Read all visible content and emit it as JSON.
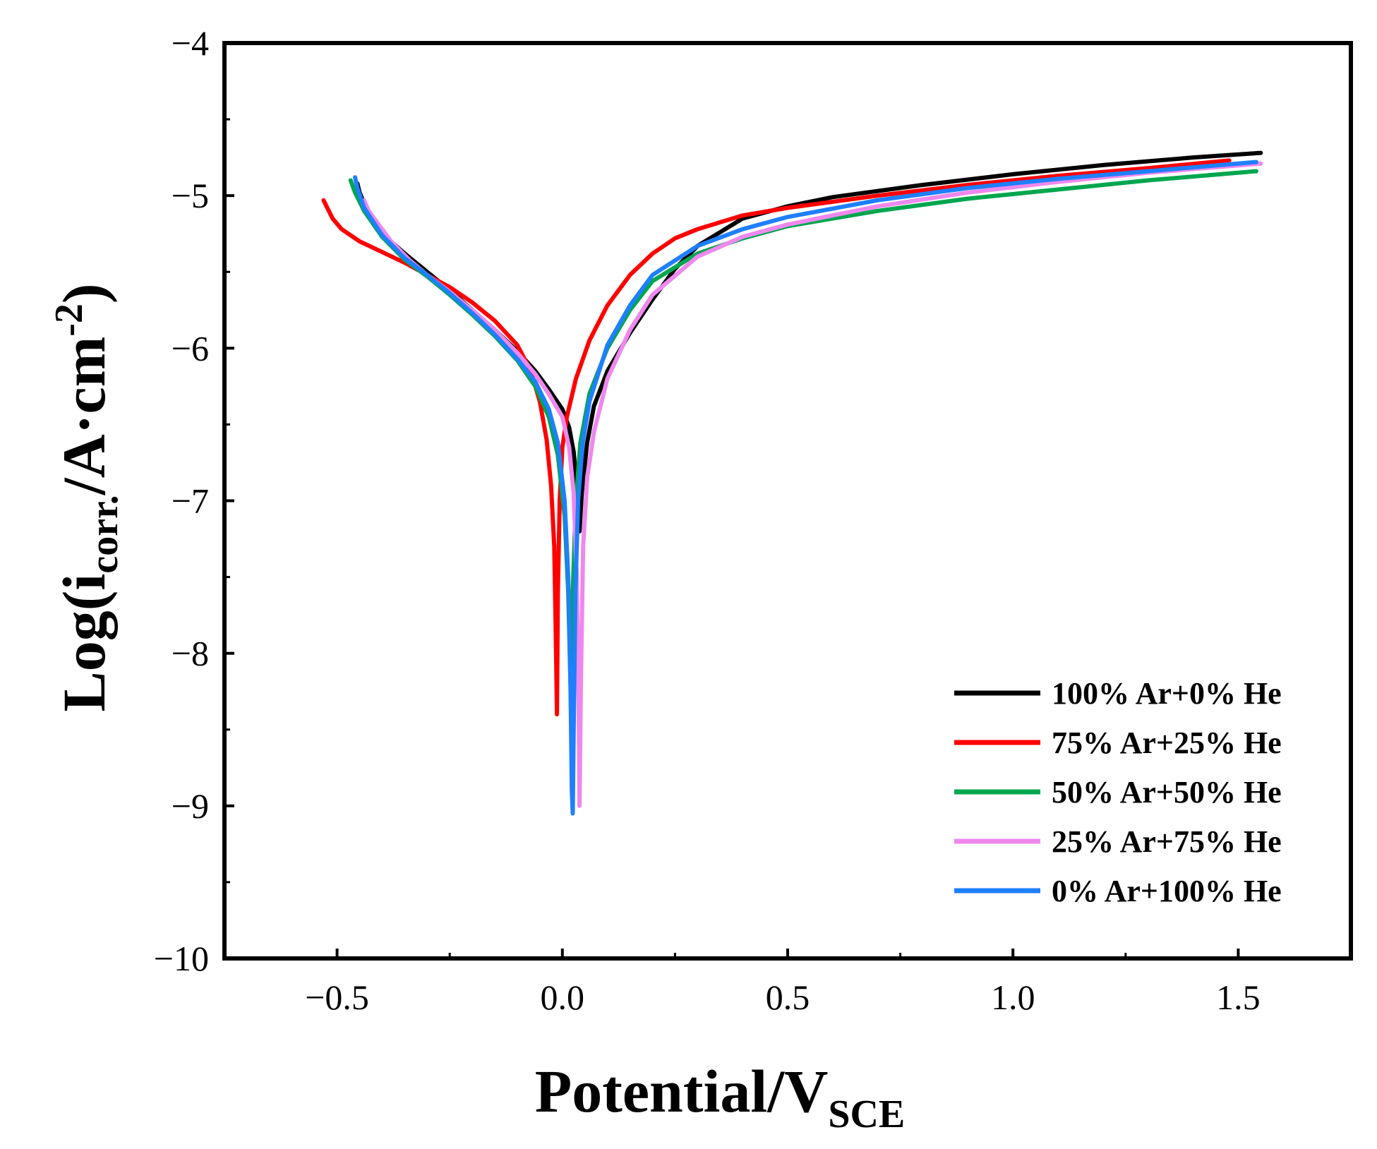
{
  "chart_data": {
    "type": "line",
    "title": "",
    "xlabel": {
      "main": "Potential/V",
      "sub": "SCE"
    },
    "ylabel": {
      "main": "Log(i",
      "sub": "corr.",
      "unit": "/A·cm",
      "sup": "-2",
      "close": ")"
    },
    "xlim": [
      -0.75,
      1.75
    ],
    "ylim": [
      -10,
      -4
    ],
    "xticks": [
      -0.5,
      0.0,
      0.5,
      1.0,
      1.5
    ],
    "xtick_labels": [
      "−0.5",
      "0.0",
      "0.5",
      "1.0",
      "1.5"
    ],
    "yticks": [
      -10,
      -9,
      -8,
      -7,
      -6,
      -5,
      -4
    ],
    "ytick_labels": [
      "−10",
      "−9",
      "−8",
      "−7",
      "−6",
      "−5",
      "−4"
    ],
    "grid": false,
    "legend_position": "bottom-right",
    "series": [
      {
        "name": "100% Ar+0% He",
        "color": "#000000",
        "x": [
          -0.455,
          -0.45,
          -0.43,
          -0.4,
          -0.35,
          -0.3,
          -0.25,
          -0.2,
          -0.15,
          -0.1,
          -0.06,
          -0.03,
          0.0,
          0.015,
          0.025,
          0.032,
          0.038,
          0.043,
          0.055,
          0.07,
          0.1,
          0.15,
          0.2,
          0.25,
          0.3,
          0.4,
          0.5,
          0.6,
          0.8,
          1.0,
          1.2,
          1.4,
          1.55
        ],
        "y": [
          -4.92,
          -4.98,
          -5.12,
          -5.25,
          -5.38,
          -5.5,
          -5.62,
          -5.75,
          -5.88,
          -6.02,
          -6.15,
          -6.27,
          -6.4,
          -6.52,
          -6.68,
          -6.9,
          -7.2,
          -6.95,
          -6.62,
          -6.38,
          -6.15,
          -5.9,
          -5.68,
          -5.48,
          -5.33,
          -5.15,
          -5.07,
          -5.01,
          -4.93,
          -4.86,
          -4.8,
          -4.75,
          -4.72
        ]
      },
      {
        "name": "75% Ar+25% He",
        "color": "#ff0000",
        "x": [
          -0.53,
          -0.51,
          -0.49,
          -0.45,
          -0.4,
          -0.35,
          -0.3,
          -0.25,
          -0.2,
          -0.15,
          -0.1,
          -0.07,
          -0.05,
          -0.035,
          -0.025,
          -0.018,
          -0.015,
          -0.013,
          -0.012,
          -0.01,
          -0.006,
          0.0,
          0.01,
          0.03,
          0.06,
          0.1,
          0.15,
          0.2,
          0.25,
          0.3,
          0.4,
          0.5,
          0.7,
          0.9,
          1.1,
          1.3,
          1.48
        ],
        "y": [
          -5.03,
          -5.15,
          -5.22,
          -5.3,
          -5.37,
          -5.44,
          -5.52,
          -5.6,
          -5.7,
          -5.82,
          -5.98,
          -6.15,
          -6.35,
          -6.6,
          -6.9,
          -7.3,
          -7.8,
          -8.2,
          -8.4,
          -7.6,
          -7.0,
          -6.65,
          -6.45,
          -6.2,
          -5.95,
          -5.72,
          -5.52,
          -5.38,
          -5.28,
          -5.22,
          -5.13,
          -5.08,
          -5.0,
          -4.93,
          -4.87,
          -4.82,
          -4.77
        ]
      },
      {
        "name": "50% Ar+50% He",
        "color": "#00a64f",
        "x": [
          -0.47,
          -0.46,
          -0.44,
          -0.4,
          -0.35,
          -0.3,
          -0.25,
          -0.2,
          -0.15,
          -0.1,
          -0.06,
          -0.03,
          -0.01,
          0.005,
          0.013,
          0.018,
          0.02,
          0.023,
          0.03,
          0.04,
          0.06,
          0.1,
          0.15,
          0.2,
          0.3,
          0.4,
          0.5,
          0.7,
          0.9,
          1.1,
          1.3,
          1.54
        ],
        "y": [
          -4.9,
          -4.98,
          -5.1,
          -5.27,
          -5.42,
          -5.53,
          -5.65,
          -5.78,
          -5.92,
          -6.08,
          -6.25,
          -6.45,
          -6.7,
          -7.1,
          -7.6,
          -8.2,
          -8.5,
          -7.6,
          -7.0,
          -6.62,
          -6.3,
          -6.0,
          -5.75,
          -5.56,
          -5.38,
          -5.28,
          -5.2,
          -5.1,
          -5.02,
          -4.96,
          -4.9,
          -4.84
        ]
      },
      {
        "name": "25% Ar+75% He",
        "color": "#ee88ee",
        "x": [
          -0.44,
          -0.43,
          -0.41,
          -0.38,
          -0.34,
          -0.3,
          -0.25,
          -0.2,
          -0.15,
          -0.1,
          -0.06,
          -0.03,
          0.0,
          0.015,
          0.025,
          0.032,
          0.036,
          0.038,
          0.041,
          0.046,
          0.055,
          0.07,
          0.1,
          0.15,
          0.2,
          0.3,
          0.4,
          0.5,
          0.7,
          0.9,
          1.1,
          1.3,
          1.55
        ],
        "y": [
          -5.03,
          -5.1,
          -5.18,
          -5.3,
          -5.42,
          -5.52,
          -5.63,
          -5.75,
          -5.88,
          -6.03,
          -6.17,
          -6.3,
          -6.45,
          -6.65,
          -6.95,
          -7.5,
          -8.3,
          -9.0,
          -8.2,
          -7.3,
          -6.85,
          -6.55,
          -6.2,
          -5.88,
          -5.65,
          -5.4,
          -5.27,
          -5.19,
          -5.07,
          -4.98,
          -4.91,
          -4.85,
          -4.79
        ]
      },
      {
        "name": "0% Ar+100% He",
        "color": "#1e7fff",
        "x": [
          -0.46,
          -0.455,
          -0.44,
          -0.4,
          -0.35,
          -0.3,
          -0.25,
          -0.2,
          -0.15,
          -0.1,
          -0.06,
          -0.03,
          -0.01,
          0.005,
          0.013,
          0.018,
          0.021,
          0.023,
          0.025,
          0.029,
          0.035,
          0.045,
          0.06,
          0.1,
          0.15,
          0.2,
          0.3,
          0.4,
          0.5,
          0.7,
          0.9,
          1.1,
          1.3,
          1.54
        ],
        "y": [
          -4.88,
          -4.95,
          -5.08,
          -5.26,
          -5.41,
          -5.52,
          -5.64,
          -5.77,
          -5.91,
          -6.07,
          -6.22,
          -6.4,
          -6.62,
          -7.0,
          -7.5,
          -8.2,
          -8.9,
          -9.05,
          -8.5,
          -7.6,
          -7.0,
          -6.62,
          -6.35,
          -5.98,
          -5.72,
          -5.52,
          -5.33,
          -5.22,
          -5.14,
          -5.03,
          -4.95,
          -4.89,
          -4.84,
          -4.78
        ]
      }
    ]
  }
}
